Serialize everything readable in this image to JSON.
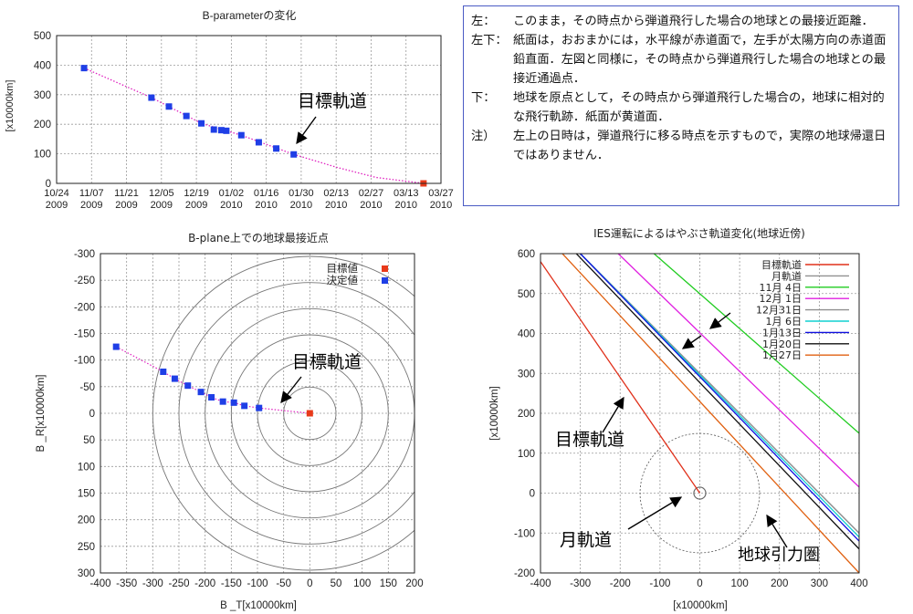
{
  "chart_data": [
    {
      "type": "scatter",
      "title": "B-parameterの変化",
      "xlabel": "",
      "ylabel": "[x10000km]",
      "ylim": [
        0,
        500
      ],
      "yticks": [
        0,
        100,
        200,
        300,
        400,
        500
      ],
      "xlim": [
        "2009-10-24",
        "2010-03-27"
      ],
      "xticks": [
        "10/24\n2009",
        "11/07\n2009",
        "11/21\n2009",
        "12/05\n2009",
        "12/19\n2009",
        "01/02\n2010",
        "01/16\n2010",
        "01/30\n2010",
        "02/13\n2010",
        "02/27\n2010",
        "03/13\n2010",
        "03/27\n2010"
      ],
      "grid": true,
      "series": [
        {
          "kind": "points",
          "color": "#1f3fe6",
          "points": [
            {
              "x": "2009-11-04",
              "y": 390
            },
            {
              "x": "2009-12-01",
              "y": 290
            },
            {
              "x": "2009-12-08",
              "y": 260
            },
            {
              "x": "2009-12-15",
              "y": 228
            },
            {
              "x": "2009-12-21",
              "y": 203
            },
            {
              "x": "2009-12-26",
              "y": 182
            },
            {
              "x": "2009-12-29",
              "y": 180
            },
            {
              "x": "2009-12-31",
              "y": 178
            },
            {
              "x": "2010-01-06",
              "y": 163
            },
            {
              "x": "2010-01-13",
              "y": 139
            },
            {
              "x": "2010-01-20",
              "y": 118
            },
            {
              "x": "2010-01-27",
              "y": 98
            }
          ]
        },
        {
          "kind": "points",
          "color": "#e83a1a",
          "points": [
            {
              "x": "2010-03-20",
              "y": 0
            }
          ]
        },
        {
          "kind": "curve",
          "color": "#e020c0",
          "points": [
            {
              "x": "2009-11-04",
              "y": 390
            },
            {
              "x": "2009-12-01",
              "y": 290
            },
            {
              "x": "2009-12-21",
              "y": 203
            },
            {
              "x": "2010-01-06",
              "y": 163
            },
            {
              "x": "2010-01-27",
              "y": 98
            },
            {
              "x": "2010-02-13",
              "y": 55
            },
            {
              "x": "2010-03-01",
              "y": 20
            },
            {
              "x": "2010-03-20",
              "y": 0
            }
          ]
        }
      ],
      "annotations": [
        {
          "text": "目標軌道",
          "x": "2010-01-29",
          "y": 140
        }
      ]
    },
    {
      "type": "scatter",
      "title": "B-plane上での地球最接近点",
      "xlabel": "B _T[x10000km]",
      "ylabel": "B _R[x10000km]",
      "xlim": [
        -400,
        200
      ],
      "ylim": [
        -300,
        300
      ],
      "y_inverted": true,
      "polar_rings": [
        50,
        100,
        150,
        200,
        250,
        300
      ],
      "grid": true,
      "legend": [
        {
          "label": "目標値",
          "color": "#e83a1a"
        },
        {
          "label": "決定値",
          "color": "#1f3fe6"
        }
      ],
      "series": [
        {
          "name": "決定値",
          "color": "#1f3fe6",
          "points": [
            {
              "x": -370,
              "y": -125
            },
            {
              "x": -280,
              "y": -78
            },
            {
              "x": -258,
              "y": -65
            },
            {
              "x": -233,
              "y": -52
            },
            {
              "x": -208,
              "y": -40
            },
            {
              "x": -188,
              "y": -30
            },
            {
              "x": -166,
              "y": -22
            },
            {
              "x": -145,
              "y": -20
            },
            {
              "x": -125,
              "y": -14
            },
            {
              "x": -97,
              "y": -10
            }
          ]
        },
        {
          "name": "目標値",
          "color": "#e83a1a",
          "points": [
            {
              "x": 0,
              "y": 0
            }
          ]
        }
      ],
      "annotations": [
        {
          "text": "目標軌道",
          "x": -37,
          "y": -105
        }
      ]
    },
    {
      "type": "line",
      "title": "IES運転によるはやぶさ軌道変化(地球近傍)",
      "xlabel": "[x10000km]",
      "ylabel": "[x10000km]",
      "xlim": [
        -400,
        400
      ],
      "ylim": [
        -200,
        600
      ],
      "grid": true,
      "circles": [
        {
          "cx": 0,
          "cy": 0,
          "r": 15,
          "style": "solid"
        },
        {
          "cx": 0,
          "cy": 0,
          "r": 150,
          "style": "dashed"
        }
      ],
      "series": [
        {
          "name": "目標軌道",
          "color": "#e0301a",
          "x": [
            -400,
            0
          ],
          "y": [
            580,
            0
          ]
        },
        {
          "name": "月軌道",
          "color": "#909090",
          "x": [
            -300,
            400
          ],
          "y": [
            600,
            -100
          ]
        },
        {
          "name": "11月 4日",
          "color": "#20cc20",
          "x": [
            -115,
            400
          ],
          "y": [
            600,
            150
          ]
        },
        {
          "name": "12月 1日",
          "color": "#e020e0",
          "x": [
            -205,
            400
          ],
          "y": [
            600,
            15
          ]
        },
        {
          "name": "12月31日",
          "color": "#909090",
          "x": [
            -300,
            400
          ],
          "y": [
            600,
            -100
          ]
        },
        {
          "name": "1月 6日",
          "color": "#10d0d0",
          "x": [
            -300,
            400
          ],
          "y": [
            600,
            -110
          ]
        },
        {
          "name": "1月13日",
          "color": "#1010e0",
          "x": [
            -300,
            400
          ],
          "y": [
            600,
            -120
          ]
        },
        {
          "name": "1月20日",
          "color": "#101010",
          "x": [
            -310,
            400
          ],
          "y": [
            600,
            -140
          ]
        },
        {
          "name": "1月27日",
          "color": "#e06010",
          "x": [
            -345,
            400
          ],
          "y": [
            600,
            -200
          ]
        }
      ],
      "annotations": [
        {
          "text": "目標軌道",
          "x": -360,
          "y": 150
        },
        {
          "text": "月軌道",
          "x": -360,
          "y": -110
        },
        {
          "text": "地球引力圏",
          "x": 80,
          "y": -160
        }
      ]
    }
  ],
  "notes": [
    {
      "tag": "左",
      "sep": "：",
      "text": "このまま，その時点から弾道飛行した場合の地球との最接近距離．"
    },
    {
      "tag": "左下",
      "sep": "：",
      "text": "紙面は，おおまかには，水平線が赤道面で，左手が太陽方向の赤道面鉛直面．左図と同様に，その時点から弾道飛行した場合の地球との最接近通過点．"
    },
    {
      "tag": "下",
      "sep": "：",
      "text": "地球を原点として，その時点から弾道飛行した場合の，地球に相対的な飛行軌跡．紙面が黄道面．"
    },
    {
      "tag": "注）",
      "sep": "",
      "text": "左上の日時は，弾道飛行に移る時点を示すもので，実際の地球帰還日ではありません．"
    }
  ]
}
